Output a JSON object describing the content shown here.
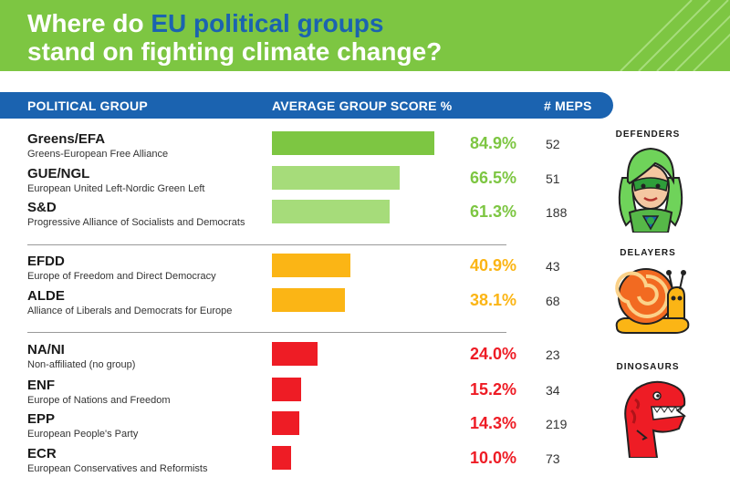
{
  "title": {
    "part1": "Where do ",
    "highlight": "EU political groups",
    "part2": "stand on fighting climate change?"
  },
  "columns": {
    "group": "POLITICAL GROUP",
    "score": "AVERAGE GROUP SCORE %",
    "meps": "# MEPS"
  },
  "categories": {
    "defenders": "DEFENDERS",
    "delayers": "DELAYERS",
    "dinosaurs": "DINOSAURS"
  },
  "colors": {
    "banner": "#7dc642",
    "header": "#1b63b0",
    "defenders_dark": "#7dc642",
    "defenders_light": "#a6dc7a",
    "delayers": "#fbb515",
    "dinosaurs": "#ee1c25"
  },
  "chart_data": {
    "type": "bar",
    "orientation": "horizontal",
    "xlim": [
      0,
      100
    ],
    "rows": [
      {
        "name": "Greens/EFA",
        "full_name": "Greens-European Free Alliance",
        "score": 84.9,
        "score_label": "84.9%",
        "meps": "52",
        "category": "defenders"
      },
      {
        "name": "GUE/NGL",
        "full_name": "European United Left-Nordic Green Left",
        "score": 66.5,
        "score_label": "66.5%",
        "meps": "51",
        "category": "defenders"
      },
      {
        "name": "S&D",
        "full_name": "Progressive Alliance of Socialists and Democrats",
        "score": 61.3,
        "score_label": "61.3%",
        "meps": "188",
        "category": "defenders"
      },
      {
        "name": "EFDD",
        "full_name": "Europe of Freedom and Direct Democracy",
        "score": 40.9,
        "score_label": "40.9%",
        "meps": "43",
        "category": "delayers"
      },
      {
        "name": "ALDE",
        "full_name": "Alliance of Liberals and Democrats for Europe",
        "score": 38.1,
        "score_label": "38.1%",
        "meps": "68",
        "category": "delayers"
      },
      {
        "name": "NA/NI",
        "full_name": "Non-affiliated (no group)",
        "score": 24.0,
        "score_label": "24.0%",
        "meps": "23",
        "category": "dinosaurs"
      },
      {
        "name": "ENF",
        "full_name": "Europe of Nations and Freedom",
        "score": 15.2,
        "score_label": "15.2%",
        "meps": "34",
        "category": "dinosaurs"
      },
      {
        "name": "EPP",
        "full_name": "European People's Party",
        "score": 14.3,
        "score_label": "14.3%",
        "meps": "219",
        "category": "dinosaurs"
      },
      {
        "name": "ECR",
        "full_name": "European Conservatives and Reformists",
        "score": 10.0,
        "score_label": "10.0%",
        "meps": "73",
        "category": "dinosaurs"
      }
    ]
  }
}
